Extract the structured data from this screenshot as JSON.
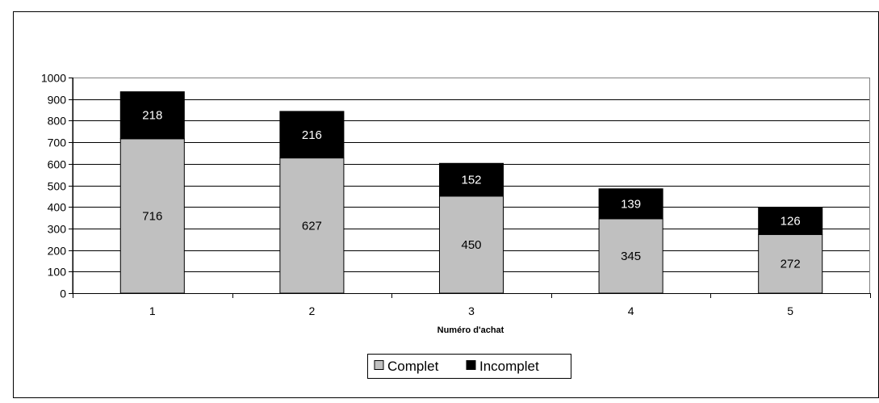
{
  "chart_data": {
    "type": "bar",
    "stacked": true,
    "categories": [
      "1",
      "2",
      "3",
      "4",
      "5"
    ],
    "series": [
      {
        "name": "Complet",
        "values": [
          716,
          627,
          450,
          345,
          272
        ],
        "color": "#c0c0c0"
      },
      {
        "name": "Incomplet",
        "values": [
          218,
          216,
          152,
          139,
          126
        ],
        "color": "#000000"
      }
    ],
    "xlabel": "Numéro d'achat",
    "ylabel": "",
    "ylim": [
      0,
      1000
    ],
    "yticks": [
      0,
      100,
      200,
      300,
      400,
      500,
      600,
      700,
      800,
      900,
      1000
    ],
    "grid": true,
    "legend": "bottom-center"
  }
}
